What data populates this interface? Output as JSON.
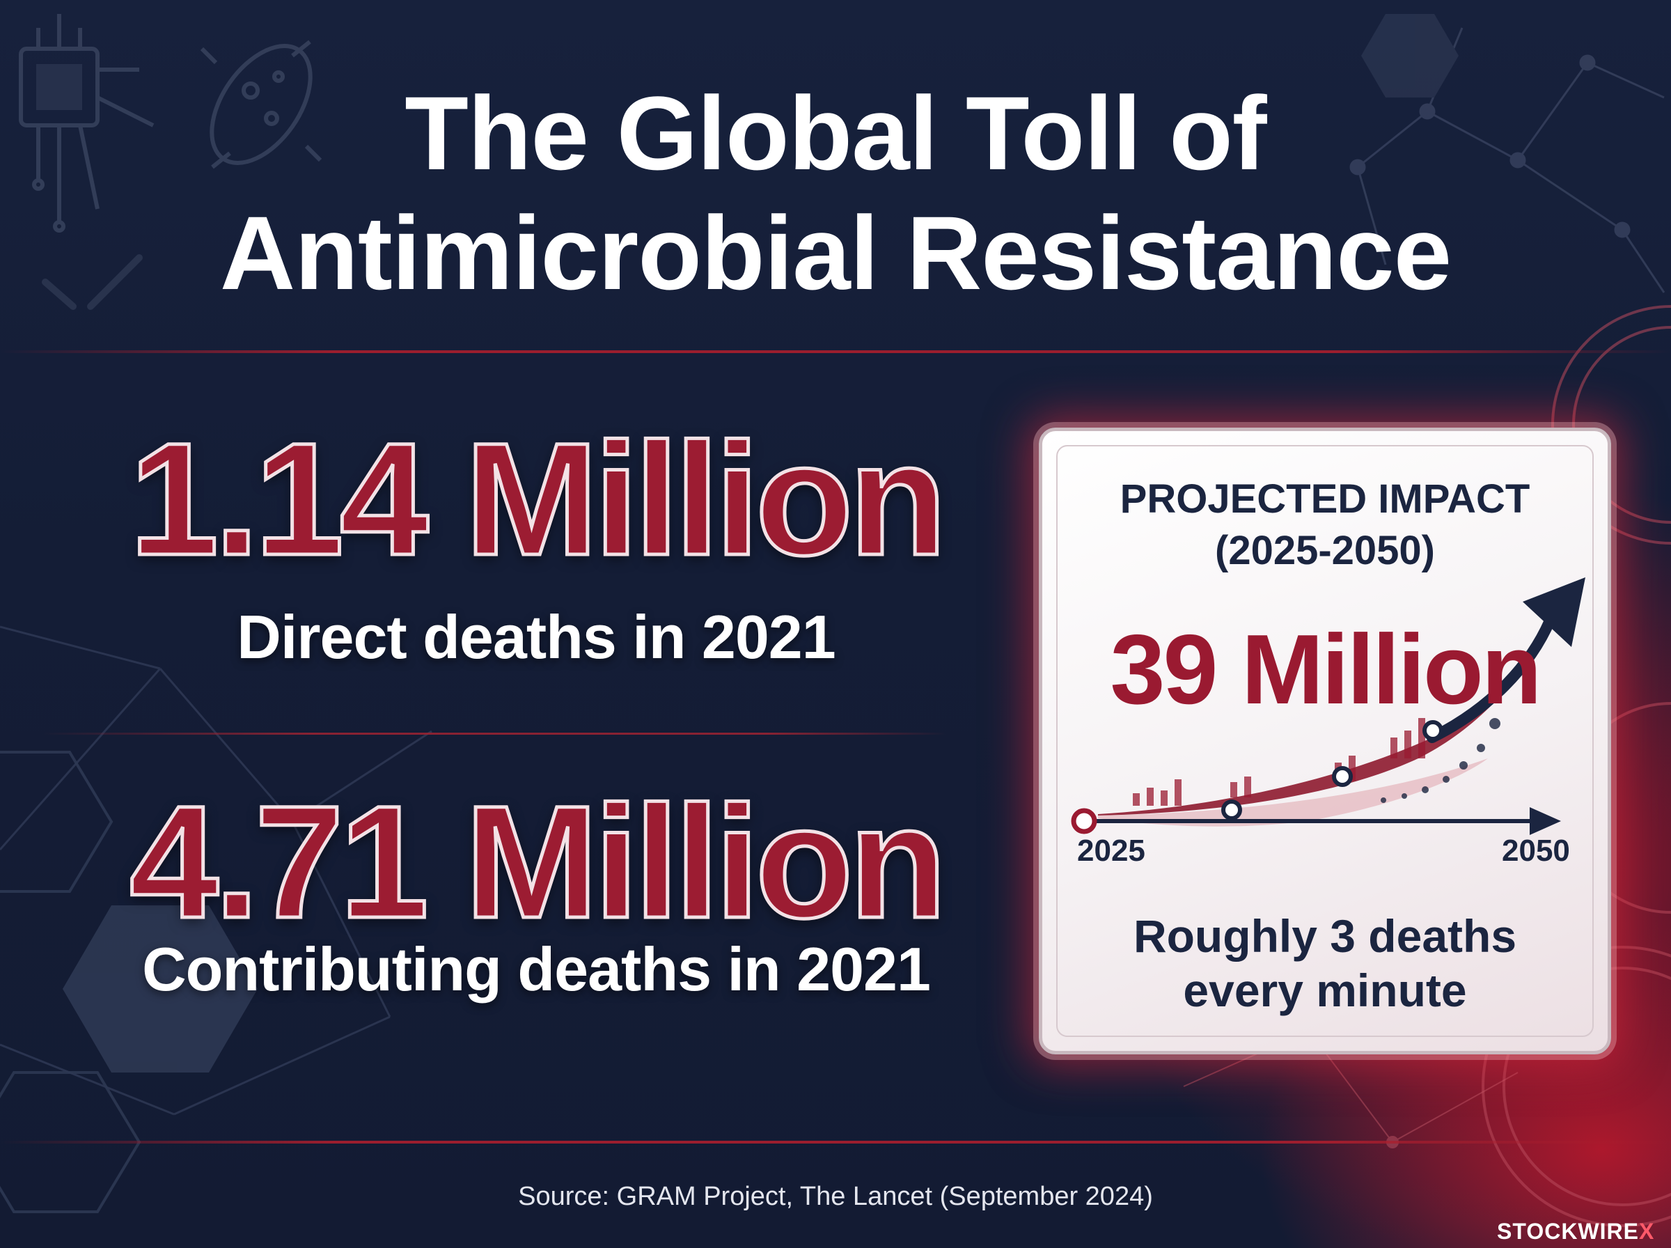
{
  "title": {
    "line1": "The Global Toll of",
    "line2": "Antimicrobial Resistance"
  },
  "stats": [
    {
      "value": "1.14 Million",
      "label": "Direct deaths in 2021"
    },
    {
      "value": "4.71 Million",
      "label": "Contributing deaths in 2021"
    }
  ],
  "projection": {
    "heading_line1": "PROJECTED IMPACT",
    "heading_line2": "(2025-2050)",
    "value": "39 Million",
    "year_start": "2025",
    "year_end": "2050",
    "note_line1": "Roughly 3 deaths",
    "note_line2": "every minute"
  },
  "source": "Source: GRAM Project, The Lancet (September 2024)",
  "brand": {
    "name": "STOCKWIRE",
    "suffix": "X"
  },
  "colors": {
    "background": "#141d36",
    "accent_red": "#9c1c32",
    "text_dark": "#1b2540",
    "text_light": "#ffffff"
  },
  "icons": [
    "microchip-icon",
    "bacteria-icon",
    "molecule-network-icon",
    "clock-icon",
    "hexagon-pattern",
    "trend-arrow-icon"
  ]
}
